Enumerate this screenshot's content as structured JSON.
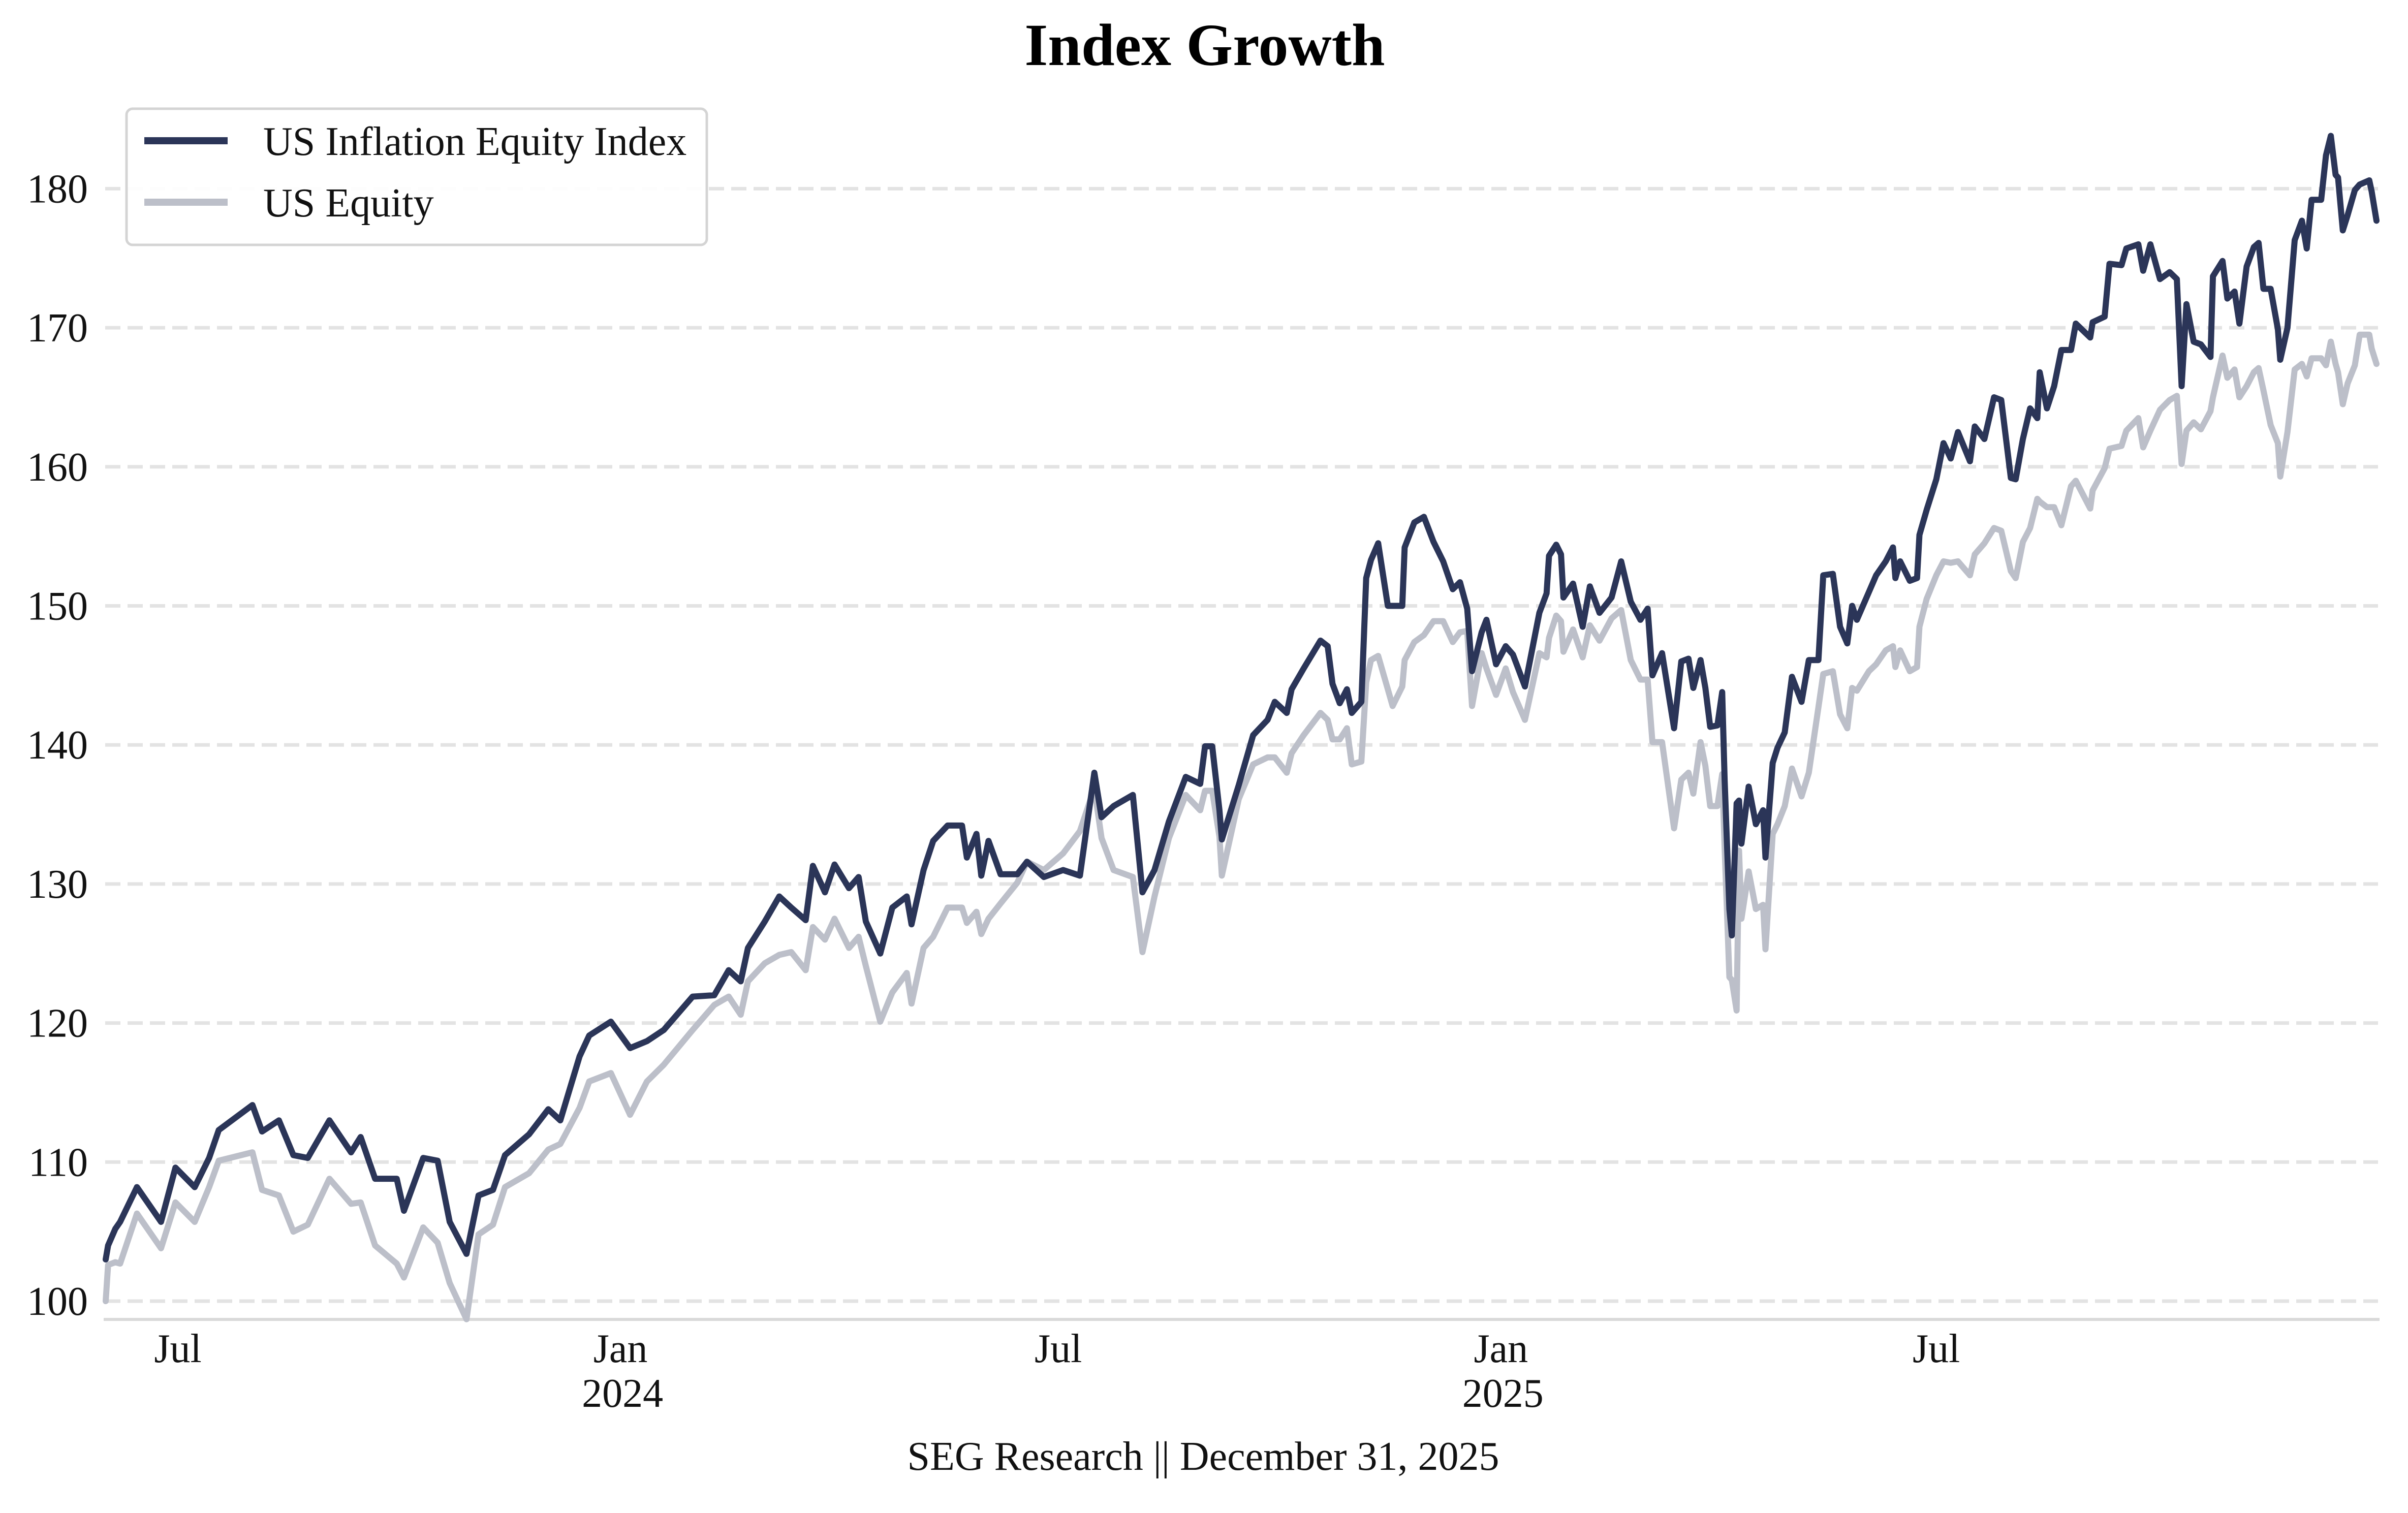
{
  "chart_data": {
    "type": "line",
    "title": "Index Growth",
    "footer": "SEG Research || December 31, 2025",
    "xlabel": "",
    "ylabel": "",
    "xlim": [
      "2023-06-01",
      "2025-12-31"
    ],
    "ylim": [
      98.8,
      185.5
    ],
    "grid": "y-dashed",
    "legend_position": "top-left",
    "y_ticks": [
      100,
      110,
      120,
      130,
      140,
      150,
      160,
      170,
      180
    ],
    "y_tick_labels": [
      "100",
      "110",
      "120",
      "130",
      "140",
      "150",
      "160",
      "170",
      "180"
    ],
    "x_ticks": [
      {
        "date": "2023-07-01",
        "label": "Jul",
        "year_label": ""
      },
      {
        "date": "2024-01-01",
        "label": "Jan",
        "year_label": "2024"
      },
      {
        "date": "2024-07-01",
        "label": "Jul",
        "year_label": ""
      },
      {
        "date": "2025-01-01",
        "label": "Jan",
        "year_label": "2025"
      },
      {
        "date": "2025-07-01",
        "label": "Jul",
        "year_label": ""
      }
    ],
    "x": [
      "2023-06-01",
      "2023-06-02",
      "2023-06-05",
      "2023-06-07",
      "2023-06-14",
      "2023-06-24",
      "2023-06-30",
      "2023-07-08",
      "2023-07-14",
      "2023-07-18",
      "2023-08-01",
      "2023-08-05",
      "2023-08-12",
      "2023-08-18",
      "2023-08-24",
      "2023-09-02",
      "2023-09-11",
      "2023-09-15",
      "2023-09-21",
      "2023-09-30",
      "2023-10-03",
      "2023-10-11",
      "2023-10-17",
      "2023-10-22",
      "2023-10-29",
      "2023-11-03",
      "2023-11-09",
      "2023-11-14",
      "2023-11-24",
      "2023-12-02",
      "2023-12-07",
      "2023-12-15",
      "2023-12-19",
      "2023-12-28",
      "2024-01-05",
      "2024-01-12",
      "2024-01-19",
      "2024-01-31",
      "2024-02-09",
      "2024-02-15",
      "2024-02-20",
      "2024-02-23",
      "2024-03-01",
      "2024-03-07",
      "2024-03-12",
      "2024-03-18",
      "2024-03-21",
      "2024-03-26",
      "2024-03-30",
      "2024-04-05",
      "2024-04-09",
      "2024-04-12",
      "2024-04-18",
      "2024-04-23",
      "2024-04-29",
      "2024-05-01",
      "2024-05-06",
      "2024-05-10",
      "2024-05-16",
      "2024-05-22",
      "2024-05-24",
      "2024-05-28",
      "2024-05-30",
      "2024-06-02",
      "2024-06-07",
      "2024-06-14",
      "2024-06-18",
      "2024-06-25",
      "2024-07-03",
      "2024-07-10",
      "2024-07-16",
      "2024-07-19",
      "2024-07-24",
      "2024-08-01",
      "2024-08-05",
      "2024-08-10",
      "2024-08-16",
      "2024-08-23",
      "2024-08-29",
      "2024-08-31",
      "2024-09-03",
      "2024-09-06",
      "2024-09-07",
      "2024-09-14",
      "2024-09-20",
      "2024-09-26",
      "2024-09-29",
      "2024-10-04",
      "2024-10-06",
      "2024-10-11",
      "2024-10-18",
      "2024-10-21",
      "2024-10-23",
      "2024-10-26",
      "2024-10-29",
      "2024-10-31",
      "2024-11-04",
      "2024-11-06",
      "2024-11-08",
      "2024-11-11",
      "2024-11-15",
      "2024-11-17",
      "2024-11-21",
      "2024-11-22",
      "2024-11-26",
      "2024-11-30",
      "2024-12-04",
      "2024-12-08",
      "2024-12-12",
      "2024-12-15",
      "2024-12-18",
      "2024-12-20",
      "2024-12-24",
      "2024-12-26",
      "2024-12-30",
      "2025-01-03",
      "2025-01-06",
      "2025-01-11",
      "2025-01-17",
      "2025-01-20",
      "2025-01-21",
      "2025-01-24",
      "2025-01-26",
      "2025-01-27",
      "2025-01-31",
      "2025-02-04",
      "2025-02-07",
      "2025-02-11",
      "2025-02-16",
      "2025-02-20",
      "2025-02-24",
      "2025-02-28",
      "2025-03-03",
      "2025-03-05",
      "2025-03-09",
      "2025-03-14",
      "2025-03-17",
      "2025-03-20",
      "2025-03-22",
      "2025-03-25",
      "2025-03-27",
      "2025-03-29",
      "2025-04-01",
      "2025-04-03",
      "2025-04-04",
      "2025-04-06",
      "2025-04-07",
      "2025-04-09",
      "2025-04-10",
      "2025-04-11",
      "2025-04-14",
      "2025-04-17",
      "2025-04-20",
      "2025-04-21",
      "2025-04-24",
      "2025-04-26",
      "2025-04-29",
      "2025-05-02",
      "2025-05-06",
      "2025-05-09",
      "2025-05-13",
      "2025-05-15",
      "2025-05-19",
      "2025-05-22",
      "2025-05-25",
      "2025-05-27",
      "2025-05-29",
      "2025-06-03",
      "2025-06-06",
      "2025-06-10",
      "2025-06-13",
      "2025-06-14",
      "2025-06-16",
      "2025-06-20",
      "2025-06-23",
      "2025-06-24",
      "2025-06-27",
      "2025-07-01",
      "2025-07-04",
      "2025-07-07",
      "2025-07-10",
      "2025-07-15",
      "2025-07-17",
      "2025-07-21",
      "2025-07-25",
      "2025-07-28",
      "2025-08-01",
      "2025-08-03",
      "2025-08-06",
      "2025-08-09",
      "2025-08-12",
      "2025-08-13",
      "2025-08-16",
      "2025-08-19",
      "2025-08-22",
      "2025-08-26",
      "2025-08-28",
      "2025-09-03",
      "2025-09-04",
      "2025-09-09",
      "2025-09-11",
      "2025-09-16",
      "2025-09-18",
      "2025-09-23",
      "2025-09-25",
      "2025-09-28",
      "2025-10-02",
      "2025-10-06",
      "2025-10-09",
      "2025-10-11",
      "2025-10-13",
      "2025-10-16",
      "2025-10-19",
      "2025-10-23",
      "2025-10-24",
      "2025-10-28",
      "2025-10-30",
      "2025-11-02",
      "2025-11-04",
      "2025-11-07",
      "2025-11-10",
      "2025-11-12",
      "2025-11-14",
      "2025-11-17",
      "2025-11-20",
      "2025-11-21",
      "2025-11-24",
      "2025-11-27",
      "2025-11-30",
      "2025-12-02",
      "2025-12-04",
      "2025-12-08",
      "2025-12-10",
      "2025-12-12",
      "2025-12-14",
      "2025-12-15",
      "2025-12-17",
      "2025-12-19",
      "2025-12-22",
      "2025-12-24",
      "2025-12-28",
      "2025-12-29",
      "2025-12-31"
    ],
    "series": [
      {
        "name": "US Inflation Equity Index",
        "color": "#2b3558",
        "values": [
          103.0,
          104.0,
          105.2,
          105.7,
          108.2,
          105.7,
          109.6,
          108.2,
          110.3,
          112.3,
          114.1,
          112.2,
          113.0,
          110.5,
          110.3,
          113.0,
          110.7,
          111.8,
          108.8,
          108.8,
          106.5,
          110.3,
          110.1,
          105.7,
          103.4,
          107.6,
          108.0,
          110.5,
          112.0,
          113.8,
          113.0,
          117.6,
          119.1,
          120.1,
          118.2,
          118.7,
          119.5,
          121.9,
          122.0,
          123.8,
          123.0,
          125.4,
          127.3,
          129.1,
          128.3,
          127.4,
          131.3,
          129.4,
          131.4,
          129.7,
          130.5,
          127.3,
          125.0,
          128.3,
          129.1,
          127.1,
          131.0,
          133.1,
          134.2,
          134.2,
          131.9,
          133.6,
          130.6,
          133.1,
          130.7,
          130.7,
          131.6,
          130.5,
          131.0,
          130.6,
          138.0,
          134.8,
          135.6,
          136.4,
          129.4,
          131.0,
          134.5,
          137.7,
          137.2,
          139.9,
          139.9,
          135.3,
          133.2,
          137.1,
          140.7,
          141.8,
          143.1,
          142.3,
          144.0,
          145.5,
          147.5,
          147.1,
          144.4,
          143.0,
          144.0,
          142.3,
          143.1,
          152.0,
          153.3,
          154.5,
          150.0,
          150.0,
          150.0,
          154.2,
          156.0,
          156.4,
          154.6,
          153.2,
          151.2,
          151.7,
          149.8,
          145.3,
          148.1,
          149.0,
          145.8,
          147.1,
          146.5,
          144.2,
          149.5,
          150.9,
          153.6,
          154.4,
          153.7,
          150.6,
          151.6,
          148.5,
          151.4,
          149.5,
          150.6,
          153.2,
          150.3,
          149.0,
          149.8,
          145.0,
          146.6,
          141.2,
          146.0,
          146.2,
          144.1,
          146.1,
          144.1,
          141.3,
          141.4,
          143.8,
          137.5,
          128.2,
          126.3,
          135.8,
          136.0,
          132.9,
          137.0,
          134.3,
          135.3,
          131.9,
          138.7,
          139.8,
          140.9,
          144.9,
          143.1,
          146.1,
          146.1,
          152.2,
          152.3,
          148.5,
          147.3,
          150.0,
          149.0,
          151.0,
          152.2,
          153.2,
          154.2,
          152.0,
          153.2,
          151.8,
          152.0,
          155.1,
          156.9,
          159.1,
          161.7,
          160.6,
          162.5,
          160.4,
          162.9,
          162.0,
          165.0,
          164.8,
          159.2,
          159.1,
          162.0,
          164.2,
          163.5,
          166.8,
          164.2,
          165.8,
          168.4,
          168.4,
          170.3,
          169.3,
          170.4,
          170.8,
          174.6,
          174.5,
          175.7,
          176.0,
          174.1,
          176.0,
          173.5,
          174.0,
          173.5,
          165.8,
          171.7,
          169.0,
          168.8,
          167.9,
          173.7,
          174.8,
          172.1,
          172.6,
          170.3,
          174.4,
          175.8,
          176.1,
          172.8,
          172.8,
          169.9,
          167.7,
          170.0,
          176.3,
          177.7,
          175.7,
          179.2,
          179.2,
          182.4,
          183.8,
          181.0,
          180.8,
          177.0,
          178.1,
          179.9,
          180.3,
          180.6,
          179.8,
          177.7
        ]
      },
      {
        "name": "US Equity",
        "color": "#bcbfc9",
        "values": [
          100.0,
          102.6,
          102.8,
          102.7,
          106.3,
          103.8,
          107.1,
          105.7,
          108.2,
          110.1,
          110.7,
          108.0,
          107.6,
          105.0,
          105.5,
          108.8,
          107.0,
          107.1,
          104.0,
          102.7,
          101.7,
          105.3,
          104.2,
          101.3,
          98.7,
          104.8,
          105.5,
          108.2,
          109.2,
          110.9,
          111.3,
          113.9,
          115.8,
          116.4,
          113.4,
          115.8,
          117.0,
          119.5,
          121.3,
          121.9,
          120.6,
          123.0,
          124.3,
          124.9,
          125.1,
          123.8,
          126.9,
          126.0,
          127.5,
          125.4,
          126.2,
          124.1,
          120.1,
          122.2,
          123.6,
          121.4,
          125.4,
          126.2,
          128.3,
          128.3,
          127.2,
          128.0,
          126.4,
          127.5,
          128.6,
          130.1,
          131.6,
          131.0,
          132.2,
          133.8,
          136.9,
          133.3,
          131.0,
          130.5,
          125.1,
          129.1,
          133.3,
          136.4,
          135.3,
          136.7,
          136.7,
          133.4,
          130.6,
          136.1,
          138.6,
          139.1,
          139.1,
          138.0,
          139.4,
          140.7,
          142.3,
          141.8,
          140.4,
          140.4,
          141.2,
          138.6,
          138.8,
          144.5,
          146.1,
          146.4,
          144.0,
          142.8,
          144.2,
          146.1,
          147.4,
          147.9,
          148.9,
          148.9,
          147.4,
          148.1,
          148.2,
          142.8,
          146.6,
          145.5,
          143.6,
          145.5,
          143.8,
          141.8,
          146.6,
          146.3,
          147.7,
          149.3,
          148.9,
          146.7,
          148.3,
          146.3,
          148.6,
          147.5,
          149.1,
          149.7,
          146.1,
          144.7,
          144.7,
          140.2,
          140.2,
          134.0,
          137.5,
          138.0,
          136.5,
          140.2,
          138.5,
          135.6,
          135.6,
          137.9,
          132.6,
          123.3,
          123.1,
          120.9,
          132.4,
          127.5,
          130.9,
          128.2,
          128.5,
          125.3,
          133.6,
          134.3,
          135.6,
          138.3,
          136.3,
          138.0,
          142.7,
          145.1,
          145.3,
          142.2,
          141.2,
          144.1,
          143.9,
          145.3,
          145.8,
          146.8,
          147.1,
          145.6,
          146.8,
          145.3,
          145.6,
          148.5,
          150.5,
          152.2,
          153.2,
          153.1,
          153.2,
          152.2,
          153.7,
          154.5,
          155.6,
          155.4,
          152.5,
          152.0,
          154.6,
          155.6,
          157.7,
          157.5,
          157.1,
          157.1,
          155.8,
          158.6,
          159.0,
          157.0,
          158.3,
          159.9,
          161.3,
          161.5,
          162.6,
          163.5,
          161.4,
          162.6,
          164.1,
          164.8,
          165.1,
          160.2,
          162.6,
          163.2,
          162.7,
          164.0,
          165.0,
          168.0,
          166.4,
          167.0,
          165.0,
          165.8,
          166.8,
          167.1,
          165.5,
          163.0,
          161.7,
          159.3,
          162.5,
          167.0,
          167.4,
          166.5,
          167.8,
          167.8,
          167.3,
          169.0,
          167.4,
          166.8,
          164.5,
          166.0,
          167.3,
          169.5,
          169.5,
          168.5,
          167.4
        ]
      }
    ]
  }
}
